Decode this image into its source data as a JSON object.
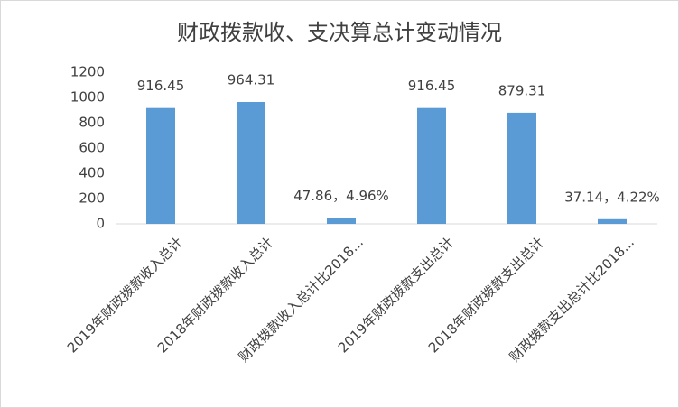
{
  "chart_data": {
    "type": "bar",
    "title": "财政拨款收、支决算总计变动情况",
    "categories": [
      "2019年财政拨款收入总计",
      "2018年财政拨款收入总计",
      "财政拨款收入总计比2018...",
      "2019年财政拨款支出总计",
      "2018年财政拨款支出总计",
      "财政拨款支出总计比2018..."
    ],
    "values": [
      916.45,
      964.31,
      47.86,
      916.45,
      879.31,
      37.14
    ],
    "value_labels": [
      "916.45",
      "964.31",
      "47.86，4.96%",
      "916.45",
      "879.31",
      "37.14，4.22%"
    ],
    "color": "#5b9bd5",
    "ylim": [
      0,
      1200
    ],
    "yticks": [
      0,
      200,
      400,
      600,
      800,
      1000,
      1200
    ],
    "grid": false
  }
}
